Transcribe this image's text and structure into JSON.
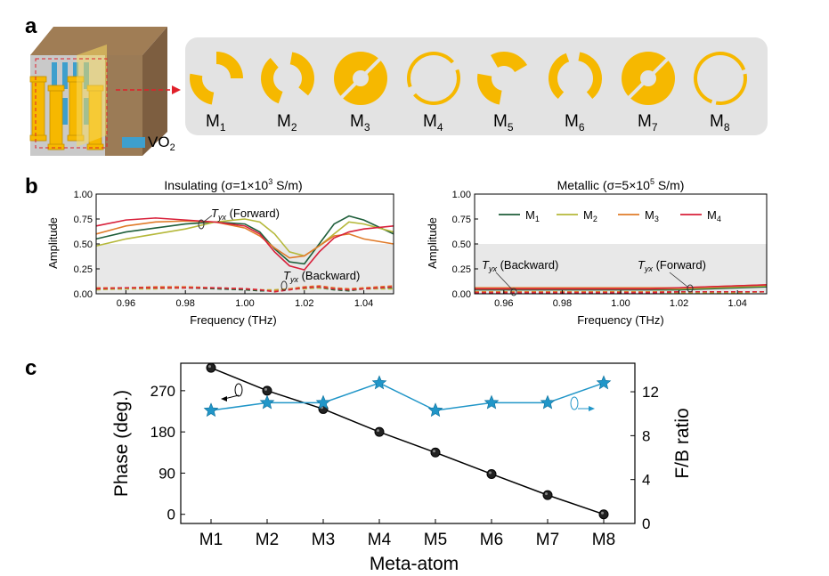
{
  "panel_a": {
    "label": "a",
    "legend": "VO",
    "legend_sub": "2",
    "atoms": [
      {
        "name": "M",
        "sub": "1"
      },
      {
        "name": "M",
        "sub": "2"
      },
      {
        "name": "M",
        "sub": "3"
      },
      {
        "name": "M",
        "sub": "4"
      },
      {
        "name": "M",
        "sub": "5"
      },
      {
        "name": "M",
        "sub": "6"
      },
      {
        "name": "M",
        "sub": "7"
      },
      {
        "name": "M",
        "sub": "8"
      }
    ],
    "colors": {
      "ring": "#f6b800",
      "panel": "#e3e3e3",
      "vo2": "#3e9fcd",
      "arrow": "#e0202a",
      "block_side": "#8c6b4a",
      "block_top": "#a07d55"
    }
  },
  "panel_b": {
    "label": "b",
    "insulating": {
      "title_pre": "Insulating (σ=1×10",
      "title_sup": "3",
      "title_post": " S/m)",
      "annotation_forward_T": "T",
      "annotation_forward_sub": "yx",
      "annotation_forward_text": " (Forward)",
      "annotation_backward_T": "T",
      "annotation_backward_sub": "yx",
      "annotation_backward_text": " (Backward)"
    },
    "metallic": {
      "title_pre": "Metallic (σ=5×10",
      "title_sup": "5",
      "title_post": " S/m)",
      "annotation_forward_T": "T",
      "annotation_forward_sub": "yx",
      "annotation_forward_text": " (Forward)",
      "annotation_backward_T": "T",
      "annotation_backward_sub": "yx",
      "annotation_backward_text": " (Backward)"
    },
    "legend": [
      {
        "name": "M",
        "sub": "1",
        "color": "#1e5e3a"
      },
      {
        "name": "M",
        "sub": "2",
        "color": "#b5b83a"
      },
      {
        "name": "M",
        "sub": "3",
        "color": "#e07b2a"
      },
      {
        "name": "M",
        "sub": "4",
        "color": "#d8203a"
      }
    ],
    "xlabel": "Frequency (THz)",
    "ylabel": "Amplitude",
    "xticks": [
      "0.96",
      "0.98",
      "1.00",
      "1.02",
      "1.04"
    ],
    "yticks": [
      "0.00",
      "0.25",
      "0.50",
      "0.75",
      "1.00"
    ]
  },
  "panel_c": {
    "label": "c",
    "xlabel": "Meta-atom",
    "ylabel_left": "Phase (deg.)",
    "ylabel_right": "F/B ratio",
    "xticks": [
      "M1",
      "M2",
      "M3",
      "M4",
      "M5",
      "M6",
      "M7",
      "M8"
    ],
    "yticks_left": [
      "0",
      "90",
      "180",
      "270"
    ],
    "yticks_right": [
      "0",
      "4",
      "8",
      "12"
    ]
  },
  "chart_data": [
    {
      "type": "line",
      "title": "Insulating (σ=1×10³ S/m)",
      "xlabel": "Frequency (THz)",
      "ylabel": "Amplitude",
      "xlim": [
        0.95,
        1.05
      ],
      "ylim": [
        0,
        1
      ],
      "grey_band": [
        0,
        0.5
      ],
      "x": [
        0.95,
        0.96,
        0.97,
        0.98,
        0.99,
        1.0,
        1.005,
        1.01,
        1.015,
        1.02,
        1.025,
        1.03,
        1.035,
        1.04,
        1.05
      ],
      "series": [
        {
          "name": "M1",
          "color": "#1e5e3a",
          "values": [
            0.55,
            0.62,
            0.66,
            0.7,
            0.72,
            0.7,
            0.62,
            0.45,
            0.32,
            0.3,
            0.5,
            0.7,
            0.78,
            0.74,
            0.6
          ]
        },
        {
          "name": "M2",
          "color": "#b5b83a",
          "values": [
            0.48,
            0.55,
            0.6,
            0.65,
            0.72,
            0.75,
            0.72,
            0.6,
            0.42,
            0.38,
            0.48,
            0.6,
            0.72,
            0.7,
            0.62
          ]
        },
        {
          "name": "M3",
          "color": "#e07b2a",
          "values": [
            0.6,
            0.68,
            0.72,
            0.73,
            0.72,
            0.66,
            0.58,
            0.46,
            0.36,
            0.38,
            0.48,
            0.58,
            0.6,
            0.55,
            0.5
          ]
        },
        {
          "name": "M4",
          "color": "#d8203a",
          "values": [
            0.68,
            0.74,
            0.76,
            0.74,
            0.72,
            0.68,
            0.6,
            0.42,
            0.28,
            0.24,
            0.42,
            0.56,
            0.62,
            0.65,
            0.68
          ]
        },
        {
          "name": "M1 backward",
          "color": "#1e5e3a",
          "dashed": true,
          "values": [
            0.05,
            0.05,
            0.06,
            0.06,
            0.05,
            0.04,
            0.03,
            0.03,
            0.05,
            0.06,
            0.06,
            0.04,
            0.03,
            0.05,
            0.06
          ]
        },
        {
          "name": "M2 backward",
          "color": "#b5b83a",
          "dashed": true,
          "values": [
            0.04,
            0.05,
            0.05,
            0.06,
            0.06,
            0.05,
            0.04,
            0.04,
            0.05,
            0.05,
            0.06,
            0.05,
            0.04,
            0.05,
            0.05
          ]
        },
        {
          "name": "M3 backward",
          "color": "#e07b2a",
          "dashed": true,
          "values": [
            0.06,
            0.06,
            0.07,
            0.07,
            0.06,
            0.05,
            0.04,
            0.03,
            0.05,
            0.07,
            0.08,
            0.06,
            0.05,
            0.06,
            0.08
          ]
        },
        {
          "name": "M4 backward",
          "color": "#d8203a",
          "dashed": true,
          "values": [
            0.05,
            0.06,
            0.06,
            0.06,
            0.06,
            0.05,
            0.04,
            0.02,
            0.04,
            0.06,
            0.07,
            0.05,
            0.04,
            0.05,
            0.07
          ]
        }
      ]
    },
    {
      "type": "line",
      "title": "Metallic (σ=5×10⁵ S/m)",
      "xlabel": "Frequency (THz)",
      "ylabel": "Amplitude",
      "xlim": [
        0.95,
        1.05
      ],
      "ylim": [
        0,
        1
      ],
      "grey_band": [
        0,
        0.5
      ],
      "x": [
        0.95,
        0.96,
        0.97,
        0.98,
        0.99,
        1.0,
        1.01,
        1.02,
        1.03,
        1.04,
        1.05
      ],
      "series": [
        {
          "name": "M1",
          "color": "#1e5e3a",
          "values": [
            0.04,
            0.04,
            0.04,
            0.04,
            0.04,
            0.04,
            0.04,
            0.04,
            0.05,
            0.06,
            0.07
          ]
        },
        {
          "name": "M2",
          "color": "#b5b83a",
          "values": [
            0.05,
            0.05,
            0.05,
            0.05,
            0.05,
            0.05,
            0.05,
            0.05,
            0.06,
            0.07,
            0.08
          ]
        },
        {
          "name": "M3",
          "color": "#e07b2a",
          "values": [
            0.06,
            0.06,
            0.06,
            0.06,
            0.06,
            0.06,
            0.06,
            0.06,
            0.07,
            0.08,
            0.09
          ]
        },
        {
          "name": "M4",
          "color": "#d8203a",
          "values": [
            0.05,
            0.05,
            0.05,
            0.05,
            0.05,
            0.05,
            0.05,
            0.06,
            0.07,
            0.08,
            0.09
          ]
        },
        {
          "name": "M1 backward",
          "color": "#1e5e3a",
          "dashed": true,
          "values": [
            0.01,
            0.01,
            0.01,
            0.01,
            0.01,
            0.01,
            0.01,
            0.01,
            0.01,
            0.02,
            0.02
          ]
        },
        {
          "name": "M2 backward",
          "color": "#b5b83a",
          "dashed": true,
          "values": [
            0.01,
            0.01,
            0.01,
            0.01,
            0.01,
            0.01,
            0.01,
            0.01,
            0.01,
            0.01,
            0.02
          ]
        },
        {
          "name": "M3 backward",
          "color": "#e07b2a",
          "dashed": true,
          "values": [
            0.02,
            0.02,
            0.02,
            0.02,
            0.02,
            0.02,
            0.02,
            0.02,
            0.02,
            0.02,
            0.02
          ]
        },
        {
          "name": "M4 backward",
          "color": "#d8203a",
          "dashed": true,
          "values": [
            0.01,
            0.01,
            0.01,
            0.01,
            0.01,
            0.01,
            0.01,
            0.02,
            0.02,
            0.02,
            0.02
          ]
        }
      ]
    },
    {
      "type": "line",
      "xlabel": "Meta-atom",
      "ylabel": "Phase (deg.)",
      "ylabel_right": "F/B ratio",
      "categories": [
        "M1",
        "M2",
        "M3",
        "M4",
        "M5",
        "M6",
        "M7",
        "M8"
      ],
      "ylim_left": [
        -20,
        330
      ],
      "ylim_right": [
        0,
        14.6
      ],
      "series": [
        {
          "name": "Phase",
          "axis": "left",
          "color": "#000000",
          "marker": "circle",
          "values": [
            320,
            270,
            230,
            180,
            135,
            88,
            42,
            0
          ]
        },
        {
          "name": "F/B ratio",
          "axis": "right",
          "color": "#2196c8",
          "marker": "star",
          "values": [
            10.3,
            11.0,
            11.0,
            12.8,
            10.3,
            11.0,
            11.0,
            12.8
          ]
        }
      ]
    }
  ]
}
